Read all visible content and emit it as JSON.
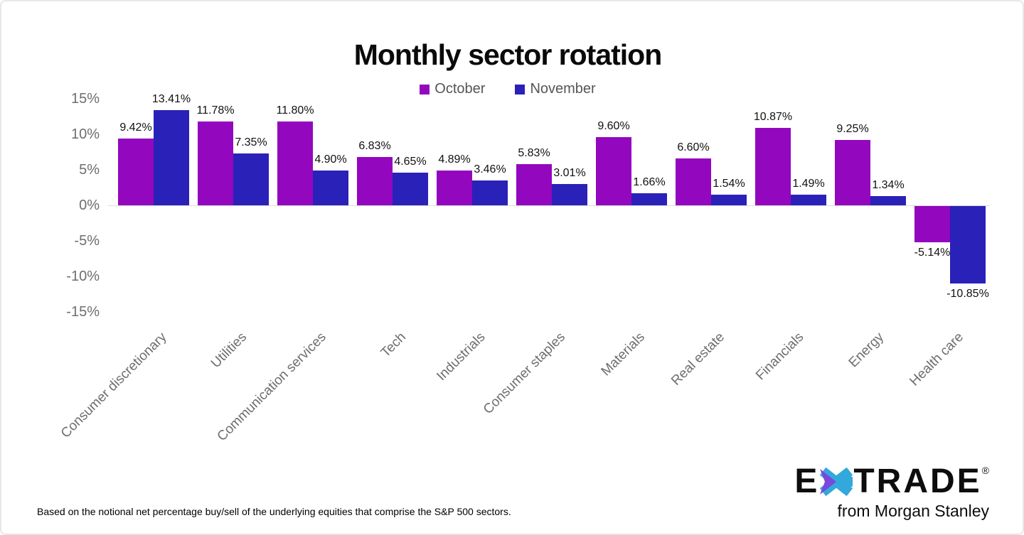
{
  "page": {
    "footnote": "Based on the notional net percentage buy/sell of the underlying equities that comprise the S&P 500 sectors.",
    "logo": {
      "brand_left": "E",
      "brand_right": "TRADE",
      "registered": "®",
      "tagline": "from Morgan Stanley",
      "star_purple": "#7b48de",
      "star_cyan": "#33a9db"
    }
  },
  "colors": {
    "october": "#9307bf",
    "november": "#2a21b8",
    "axis_line": "#dcdcdc",
    "axis_text": "#6e6e6e",
    "value_text": "#111111"
  },
  "chart_data": {
    "type": "bar",
    "title": "Monthly sector rotation",
    "categories": [
      "Consumer discretionary",
      "Utilities",
      "Communication services",
      "Tech",
      "Industrials",
      "Consumer staples",
      "Materials",
      "Real estate",
      "Financials",
      "Energy",
      "Health care"
    ],
    "series": [
      {
        "name": "October",
        "color": "#9307bf",
        "values": [
          9.42,
          11.78,
          11.8,
          6.83,
          4.89,
          5.83,
          9.6,
          6.6,
          10.87,
          9.25,
          -5.14
        ]
      },
      {
        "name": "November",
        "color": "#2a21b8",
        "values": [
          13.41,
          7.35,
          4.9,
          4.65,
          3.46,
          3.01,
          1.66,
          1.54,
          1.49,
          1.34,
          -10.85
        ]
      }
    ],
    "value_labels": [
      [
        "9.42%",
        "11.78%",
        "11.80%",
        "6.83%",
        "4.89%",
        "5.83%",
        "9.60%",
        "6.60%",
        "10.87%",
        "9.25%",
        "-5.14%"
      ],
      [
        "13.41%",
        "7.35%",
        "4.90%",
        "4.65%",
        "3.46%",
        "3.01%",
        "1.66%",
        "1.54%",
        "1.49%",
        "1.34%",
        "-10.85%"
      ]
    ],
    "y_ticks": [
      "15%",
      "10%",
      "5%",
      "0%",
      "-5%",
      "-10%",
      "-15%"
    ],
    "ylim": [
      -15,
      15
    ],
    "xlabel": "",
    "ylabel": "",
    "grid": false,
    "legend_position": "top"
  }
}
